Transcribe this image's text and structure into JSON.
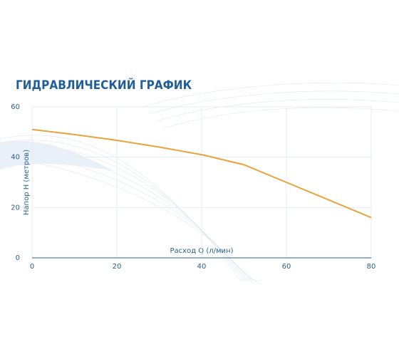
{
  "chart_data": {
    "type": "line",
    "title": "ГИДРАВЛИЧЕСКИЙ ГРАФИК",
    "x_label": "Расход Q (л/мин)",
    "y_label": "Напор Н (метров)",
    "x": [
      0,
      10,
      20,
      30,
      40,
      50,
      60,
      70,
      80
    ],
    "series": [
      {
        "name": "Напор",
        "color": "#e8a33a",
        "values": [
          51,
          49,
          46.7,
          44,
          41,
          37,
          30,
          23,
          16
        ]
      }
    ],
    "xlim": [
      0,
      80
    ],
    "ylim": [
      0,
      60
    ],
    "xticks": [
      0,
      20,
      40,
      60,
      80
    ],
    "yticks": [
      0,
      20,
      40,
      60
    ],
    "grid": true
  }
}
